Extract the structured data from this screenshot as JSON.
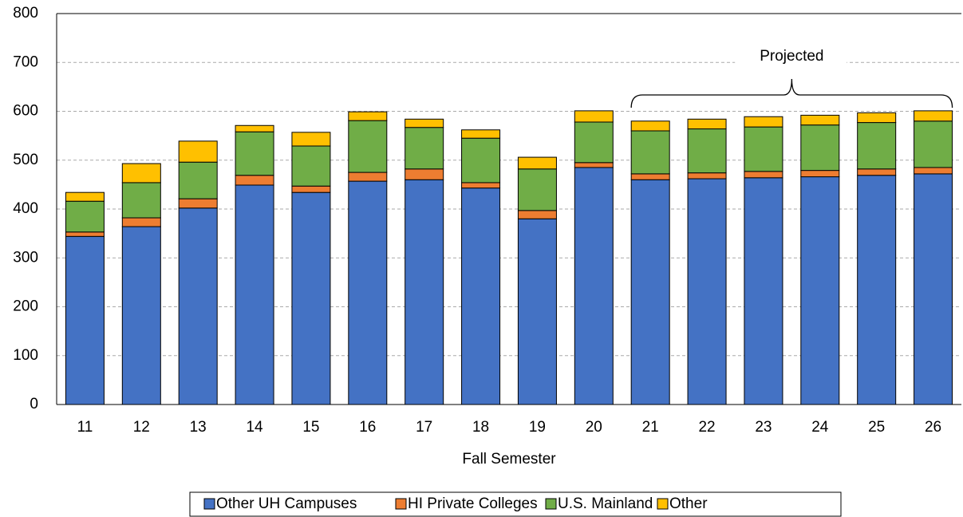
{
  "chart_data": {
    "type": "stacked_bar",
    "x_label": "Fall Semester",
    "annotation": "Projected",
    "categories": [
      "11",
      "12",
      "13",
      "14",
      "15",
      "16",
      "17",
      "18",
      "19",
      "20",
      "21",
      "22",
      "23",
      "24",
      "25",
      "26"
    ],
    "series": [
      {
        "name": "Other UH Campuses",
        "color": "#4472c4",
        "values": [
          344,
          364,
          402,
          449,
          434,
          457,
          460,
          443,
          380,
          485,
          460,
          462,
          464,
          466,
          469,
          472
        ]
      },
      {
        "name": "HI Private Colleges",
        "color": "#ed7d31",
        "values": [
          9,
          18,
          19,
          20,
          13,
          18,
          22,
          11,
          17,
          10,
          12,
          12,
          13,
          13,
          13,
          13
        ]
      },
      {
        "name": "U.S. Mainland",
        "color": "#70ad47",
        "values": [
          63,
          72,
          75,
          89,
          82,
          106,
          85,
          91,
          85,
          83,
          88,
          90,
          91,
          93,
          95,
          95
        ]
      },
      {
        "name": "Other",
        "color": "#ffc000",
        "values": [
          18,
          39,
          43,
          13,
          28,
          18,
          17,
          17,
          24,
          23,
          20,
          20,
          21,
          20,
          20,
          21
        ]
      }
    ],
    "ylim": [
      0,
      800
    ],
    "yticks": [
      0,
      100,
      200,
      300,
      400,
      500,
      600,
      700,
      800
    ],
    "grid": true,
    "legend": "bottom"
  }
}
